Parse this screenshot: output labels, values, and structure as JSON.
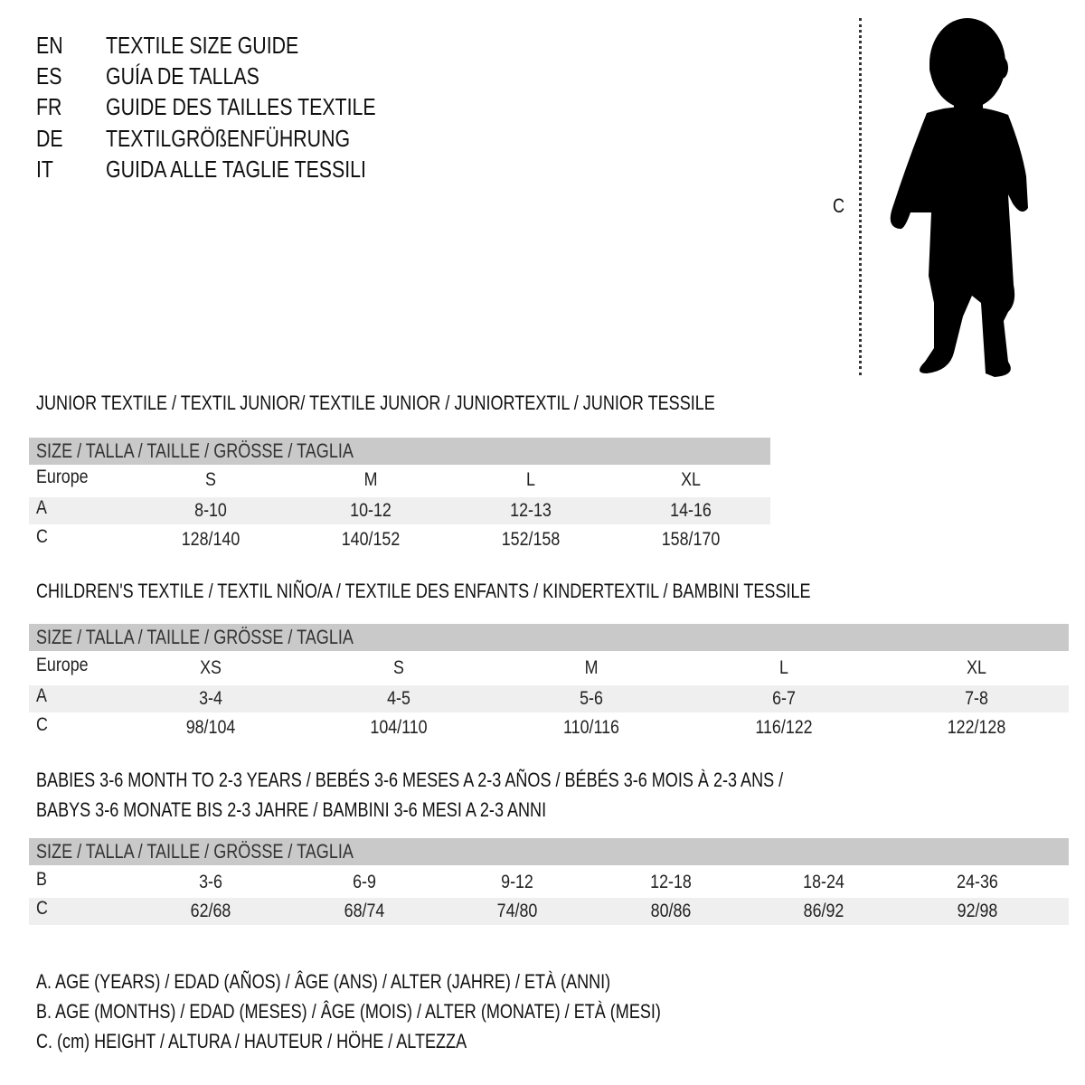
{
  "titles": [
    {
      "code": "EN",
      "text": "TEXTILE SIZE GUIDE"
    },
    {
      "code": "ES",
      "text": "GUÍA DE TALLAS"
    },
    {
      "code": "FR",
      "text": "GUIDE DES TAILLES TEXTILE"
    },
    {
      "code": "DE",
      "text": "TEXTILGRÖßENFÜHRUNG"
    },
    {
      "code": "IT",
      "text": "GUIDA ALLE TAGLIE TESSILI"
    }
  ],
  "figure": {
    "measure_label": "C",
    "icon": "child-silhouette-icon"
  },
  "tables": [
    {
      "title_lines": [
        "JUNIOR TEXTILE / TEXTIL JUNIOR/ TEXTILE JUNIOR / JUNIORTEXTIL / JUNIOR TESSILE"
      ],
      "header": "SIZE / TALLA / TAILLE / GRÖSSE / TAGLIA",
      "rows": [
        {
          "label": "Europe",
          "values": [
            "S",
            "M",
            "L",
            "XL"
          ]
        },
        {
          "label": "A",
          "values": [
            "8-10",
            "10-12",
            "12-13",
            "14-16"
          ]
        },
        {
          "label": "C",
          "values": [
            "128/140",
            "140/152",
            "152/158",
            "158/170"
          ]
        }
      ]
    },
    {
      "title_lines": [
        "CHILDREN'S TEXTILE / TEXTIL NIÑO/A / TEXTILE DES ENFANTS / KINDERTEXTIL / BAMBINI TESSILE"
      ],
      "header": "SIZE / TALLA / TAILLE / GRÖSSE / TAGLIA",
      "rows": [
        {
          "label": "Europe",
          "values": [
            "XS",
            "S",
            "M",
            "L",
            "XL"
          ]
        },
        {
          "label": "A",
          "values": [
            "3-4",
            "4-5",
            "5-6",
            "6-7",
            "7-8"
          ]
        },
        {
          "label": "C",
          "values": [
            "98/104",
            "104/110",
            "110/116",
            "116/122",
            "122/128"
          ]
        }
      ]
    },
    {
      "title_lines": [
        "BABIES 3-6 MONTH TO 2-3 YEARS / BEBÉS 3-6 MESES A 2-3 AÑOS / BÉBÉS 3-6 MOIS À 2-3 ANS /",
        "BABYS 3-6 MONATE BIS 2-3 JAHRE / BAMBINI 3-6 MESI A 2-3 ANNI"
      ],
      "header": "SIZE / TALLA / TAILLE / GRÖSSE / TAGLIA",
      "rows": [
        {
          "label": "B",
          "values": [
            "3-6",
            "6-9",
            "9-12",
            "12-18",
            "18-24",
            "24-36"
          ]
        },
        {
          "label": "C",
          "values": [
            "62/68",
            "68/74",
            "74/80",
            "80/86",
            "86/92",
            "92/98"
          ]
        }
      ]
    }
  ],
  "legend": [
    "A. AGE (YEARS) / EDAD (AÑOS) / ÂGE (ANS) / ALTER (JAHRE) / ETÀ (ANNI)",
    "B. AGE (MONTHS) / EDAD (MESES) / ÂGE (MOIS) / ALTER (MONATE) / ETÀ (MESI)",
    "C. (cm) HEIGHT / ALTURA / HAUTEUR / HÖHE / ALTEZZA"
  ]
}
